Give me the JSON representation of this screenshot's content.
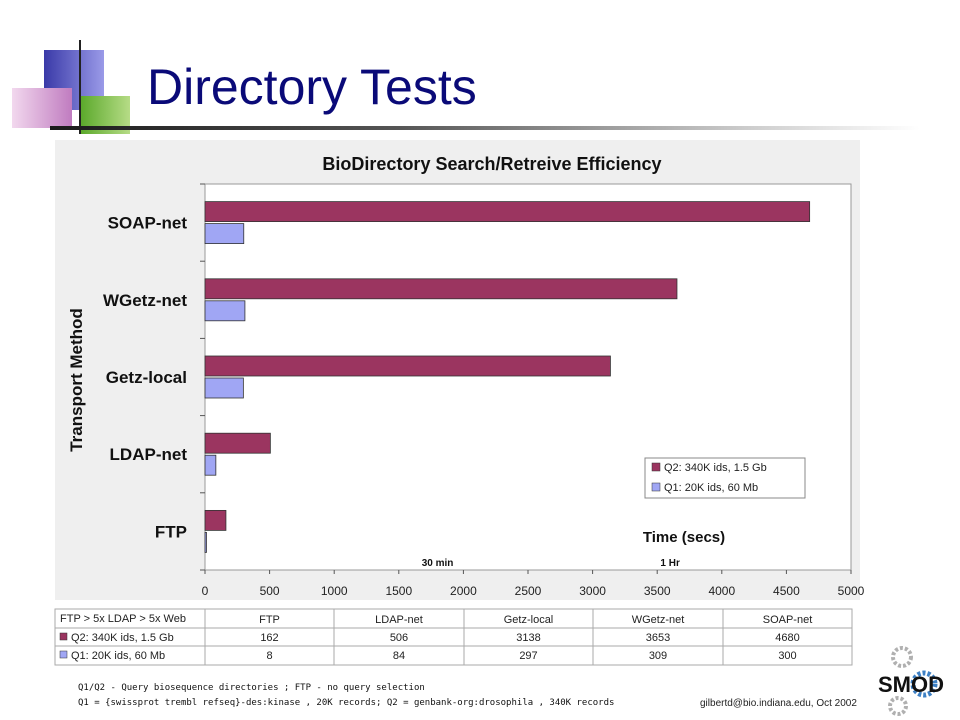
{
  "slide": {
    "title": "Directory Tests",
    "logo_text": "SMOD",
    "footer_line1": "Q1/Q2 - Query biosequence directories ;  FTP - no query selection",
    "footer_line2": "Q1 = {swissprot trembl refseq}-des:kinase , 20K records; Q2 = genbank-org:drosophila , 340K records",
    "email": "gilbertd@bio.indiana.edu, Oct 2002"
  },
  "chart_data": {
    "type": "bar",
    "orientation": "horizontal",
    "title": "BioDirectory Search/Retreive  Efficiency",
    "xlabel": "Time (secs)",
    "ylabel": "Transport Method",
    "categories": [
      "SOAP-net",
      "WGetz-net",
      "Getz-local",
      "LDAP-net",
      "FTP"
    ],
    "series": [
      {
        "name": "Q2: 340K ids, 1.5 Gb",
        "color": "#9b3560",
        "values": [
          4680,
          3653,
          3138,
          506,
          162
        ]
      },
      {
        "name": "Q1: 20K ids, 60 Mb",
        "color": "#a0a6f4",
        "values": [
          300,
          309,
          297,
          84,
          8
        ]
      }
    ],
    "xlim": [
      0,
      5000
    ],
    "xticks": [
      "0",
      "500",
      "1000",
      "1500",
      "2000",
      "2500",
      "3000",
      "3500",
      "4000",
      "4500",
      "5000"
    ],
    "annotations": [
      {
        "text": "30 min",
        "x": 1800
      },
      {
        "text": "1 Hr",
        "x": 3600
      }
    ],
    "grid": "none",
    "legend_position": "right",
    "table": {
      "header_label": "FTP > 5x LDAP > 5x Web",
      "columns": [
        "FTP",
        "LDAP-net",
        "Getz-local",
        "WGetz-net",
        "SOAP-net"
      ],
      "rows": [
        {
          "label": "Q2: 340K ids, 1.5 Gb",
          "color": "#9b3560",
          "values": [
            "162",
            "506",
            "3138",
            "3653",
            "4680"
          ]
        },
        {
          "label": "Q1: 20K ids, 60 Mb",
          "color": "#a0a6f4",
          "values": [
            "8",
            "84",
            "297",
            "309",
            "300"
          ]
        }
      ]
    }
  }
}
